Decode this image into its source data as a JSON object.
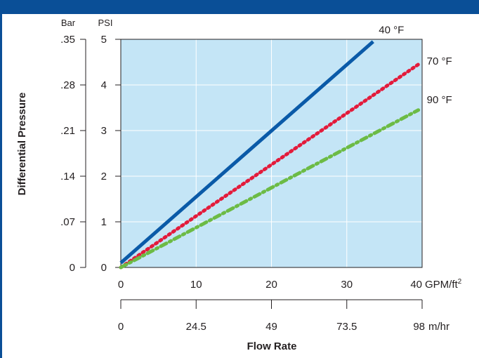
{
  "colors": {
    "header_bar": "#0a4f97",
    "plot_background": "#c4e5f6",
    "grid": "#ffffff",
    "axis": "#231f20"
  },
  "chart_data": {
    "type": "line",
    "title": "",
    "ylabel": "Differential Pressure",
    "xlabel": "Flow Rate",
    "left_axis_units": {
      "outer": "Bar",
      "inner": "PSI"
    },
    "y_psi": {
      "min": 0,
      "max": 5,
      "ticks": [
        0,
        1,
        2,
        3,
        4,
        5
      ],
      "tick_labels": [
        "0",
        "1",
        "2",
        "3",
        "4",
        "5"
      ]
    },
    "y_bar": {
      "tick_labels": [
        "0",
        ".07",
        ".14",
        ".21",
        ".28",
        ".35"
      ]
    },
    "x_gpm": {
      "min": 0,
      "max": 40,
      "ticks": [
        0,
        10,
        20,
        30,
        40
      ],
      "tick_labels": [
        "0",
        "10",
        "20",
        "30",
        "40"
      ],
      "unit": "GPM/ft",
      "unit_superscript": "2"
    },
    "x_mhr": {
      "tick_labels": [
        "0",
        "24.5",
        "49",
        "73.5",
        "98"
      ],
      "unit": "m/hr"
    },
    "grid": true,
    "series": [
      {
        "name": "40 °F",
        "color": "#0a5aa8",
        "style": "solid",
        "x": [
          0,
          33.5
        ],
        "y": [
          0.1,
          4.95
        ]
      },
      {
        "name": "70 °F",
        "color": "#e31b3b",
        "style": "dotted",
        "x": [
          0,
          39.5
        ],
        "y": [
          0.0,
          4.45
        ]
      },
      {
        "name": "90 °F",
        "color": "#6cbb45",
        "style": "dash-dot",
        "x": [
          0,
          39.5
        ],
        "y": [
          0.0,
          3.45
        ]
      }
    ]
  }
}
